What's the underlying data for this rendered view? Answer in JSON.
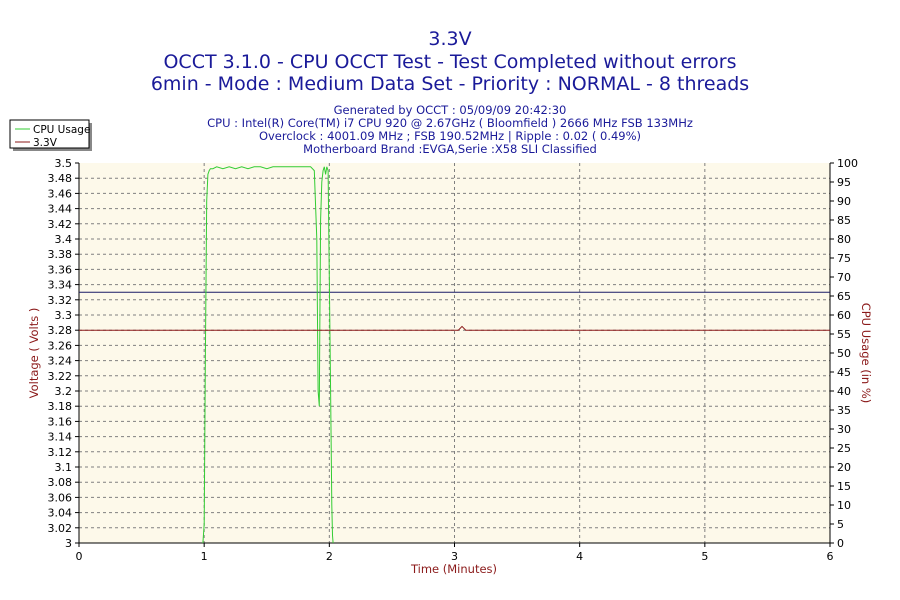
{
  "chart_data": {
    "type": "line",
    "title": "3.3V",
    "subtitle_lines": [
      "OCCT 3.1.0 - CPU OCCT Test - Test Completed without errors",
      "6min - Mode : Medium Data Set - Priority : NORMAL - 8 threads"
    ],
    "info_lines": [
      "Generated by OCCT : 05/09/09 20:42:30",
      "CPU : Intel(R) Core(TM) i7 CPU 920 @ 2.67GHz ( Bloomfield ) 2666 MHz FSB 133MHz",
      "Overclock : 4001.09 MHz ; FSB 190.52MHz | Ripple : 0.02 ( 0.49%)",
      "Motherboard Brand :EVGA,Serie :X58 SLI Classified"
    ],
    "xlabel": "Time (Minutes)",
    "ylabel_left": "Voltage ( Volts )",
    "ylabel_right": "CPU Usage (in %)",
    "xlim": [
      0,
      6
    ],
    "ylim_left": [
      3.0,
      3.5
    ],
    "ylim_right": [
      0,
      100
    ],
    "x_ticks": [
      "0",
      "1",
      "2",
      "3",
      "4",
      "5",
      "6"
    ],
    "y_left_ticks": [
      "3",
      "3.02",
      "3.04",
      "3.06",
      "3.08",
      "3.1",
      "3.12",
      "3.14",
      "3.16",
      "3.18",
      "3.2",
      "3.22",
      "3.24",
      "3.26",
      "3.28",
      "3.3",
      "3.32",
      "3.34",
      "3.36",
      "3.38",
      "3.4",
      "3.42",
      "3.44",
      "3.46",
      "3.48",
      "3.5"
    ],
    "y_right_ticks": [
      "0",
      "5",
      "10",
      "15",
      "20",
      "25",
      "30",
      "35",
      "40",
      "45",
      "50",
      "55",
      "60",
      "65",
      "70",
      "75",
      "80",
      "85",
      "90",
      "95",
      "100"
    ],
    "grid": true,
    "legend_position": "top-left",
    "reference_line": {
      "axis": "left",
      "value": 3.33,
      "color": "#1a1a66"
    },
    "series": [
      {
        "name": "CPU Usage",
        "axis": "right",
        "color": "#33cc33",
        "x": [
          0.99,
          1.0,
          1.01,
          1.02,
          1.03,
          1.04,
          1.05,
          1.07,
          1.1,
          1.15,
          1.2,
          1.25,
          1.3,
          1.35,
          1.4,
          1.45,
          1.5,
          1.55,
          1.6,
          1.65,
          1.7,
          1.75,
          1.8,
          1.85,
          1.88,
          1.9,
          1.91,
          1.92,
          1.925,
          1.93,
          1.94,
          1.95,
          1.96,
          1.97,
          1.98,
          1.99,
          2.0,
          2.01,
          2.02,
          2.025,
          2.03
        ],
        "values": [
          0,
          5,
          50,
          90,
          97,
          98,
          98.5,
          98.5,
          99,
          98.5,
          99,
          98.5,
          99,
          98.5,
          99,
          99,
          98.5,
          99,
          99,
          99,
          99,
          99,
          99,
          99,
          98,
          80,
          40,
          36,
          60,
          85,
          95,
          98,
          99,
          97,
          99,
          98,
          70,
          40,
          10,
          2,
          0
        ]
      },
      {
        "name": "3.3V",
        "axis": "left",
        "color": "#8b1a1a",
        "x": [
          0,
          3.03,
          3.06,
          3.09,
          6
        ],
        "values": [
          3.28,
          3.28,
          3.285,
          3.28,
          3.28
        ]
      }
    ]
  }
}
